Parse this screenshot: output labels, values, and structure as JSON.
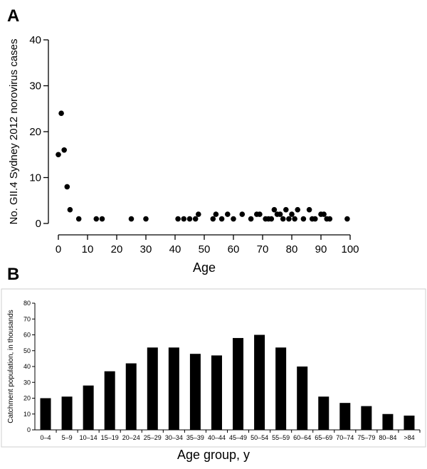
{
  "panel_labels": [
    "A",
    "B"
  ],
  "chart_data": [
    {
      "type": "scatter",
      "title": "",
      "xlabel": "Age",
      "ylabel": "No. GII.4 Sydney 2012 norovirus cases",
      "xlim": [
        0,
        100
      ],
      "ylim": [
        0,
        40
      ],
      "xticks": [
        0,
        10,
        20,
        30,
        40,
        50,
        60,
        70,
        80,
        90,
        100
      ],
      "yticks": [
        0,
        10,
        20,
        30,
        40
      ],
      "grid": false,
      "points": [
        {
          "x": 0,
          "y": 15
        },
        {
          "x": 1,
          "y": 24
        },
        {
          "x": 2,
          "y": 16
        },
        {
          "x": 3,
          "y": 8
        },
        {
          "x": 4,
          "y": 3
        },
        {
          "x": 7,
          "y": 1
        },
        {
          "x": 13,
          "y": 1
        },
        {
          "x": 15,
          "y": 1
        },
        {
          "x": 25,
          "y": 1
        },
        {
          "x": 30,
          "y": 1
        },
        {
          "x": 41,
          "y": 1
        },
        {
          "x": 43,
          "y": 1
        },
        {
          "x": 45,
          "y": 1
        },
        {
          "x": 47,
          "y": 1
        },
        {
          "x": 48,
          "y": 2
        },
        {
          "x": 53,
          "y": 1
        },
        {
          "x": 54,
          "y": 2
        },
        {
          "x": 56,
          "y": 1
        },
        {
          "x": 58,
          "y": 2
        },
        {
          "x": 60,
          "y": 1
        },
        {
          "x": 63,
          "y": 2
        },
        {
          "x": 66,
          "y": 1
        },
        {
          "x": 68,
          "y": 2
        },
        {
          "x": 69,
          "y": 2
        },
        {
          "x": 71,
          "y": 1
        },
        {
          "x": 72,
          "y": 1
        },
        {
          "x": 73,
          "y": 1
        },
        {
          "x": 74,
          "y": 3
        },
        {
          "x": 75,
          "y": 2
        },
        {
          "x": 76,
          "y": 2
        },
        {
          "x": 77,
          "y": 1
        },
        {
          "x": 78,
          "y": 3
        },
        {
          "x": 79,
          "y": 1
        },
        {
          "x": 80,
          "y": 2
        },
        {
          "x": 81,
          "y": 1
        },
        {
          "x": 82,
          "y": 3
        },
        {
          "x": 84,
          "y": 1
        },
        {
          "x": 86,
          "y": 3
        },
        {
          "x": 87,
          "y": 1
        },
        {
          "x": 88,
          "y": 1
        },
        {
          "x": 90,
          "y": 2
        },
        {
          "x": 91,
          "y": 2
        },
        {
          "x": 92,
          "y": 1
        },
        {
          "x": 93,
          "y": 1
        },
        {
          "x": 99,
          "y": 1
        }
      ]
    },
    {
      "type": "bar",
      "title": "",
      "xlabel": "Age group, y",
      "ylabel": "Catchment population, in thousands",
      "ylim": [
        0,
        80
      ],
      "yticks": [
        0,
        10,
        20,
        30,
        40,
        50,
        60,
        70,
        80
      ],
      "grid": false,
      "categories": [
        "0–4",
        "5–9",
        "10–14",
        "15–19",
        "20–24",
        "25–29",
        "30–34",
        "35–39",
        "40–44",
        "45–49",
        "50–54",
        "55–59",
        "60–64",
        "65–69",
        "70–74",
        "75–79",
        "80–84",
        ">84"
      ],
      "values": [
        20,
        21,
        28,
        37,
        42,
        52,
        52,
        48,
        47,
        58,
        60,
        52,
        40,
        21,
        17,
        15,
        10,
        9
      ],
      "bar_color": "#000000"
    }
  ]
}
